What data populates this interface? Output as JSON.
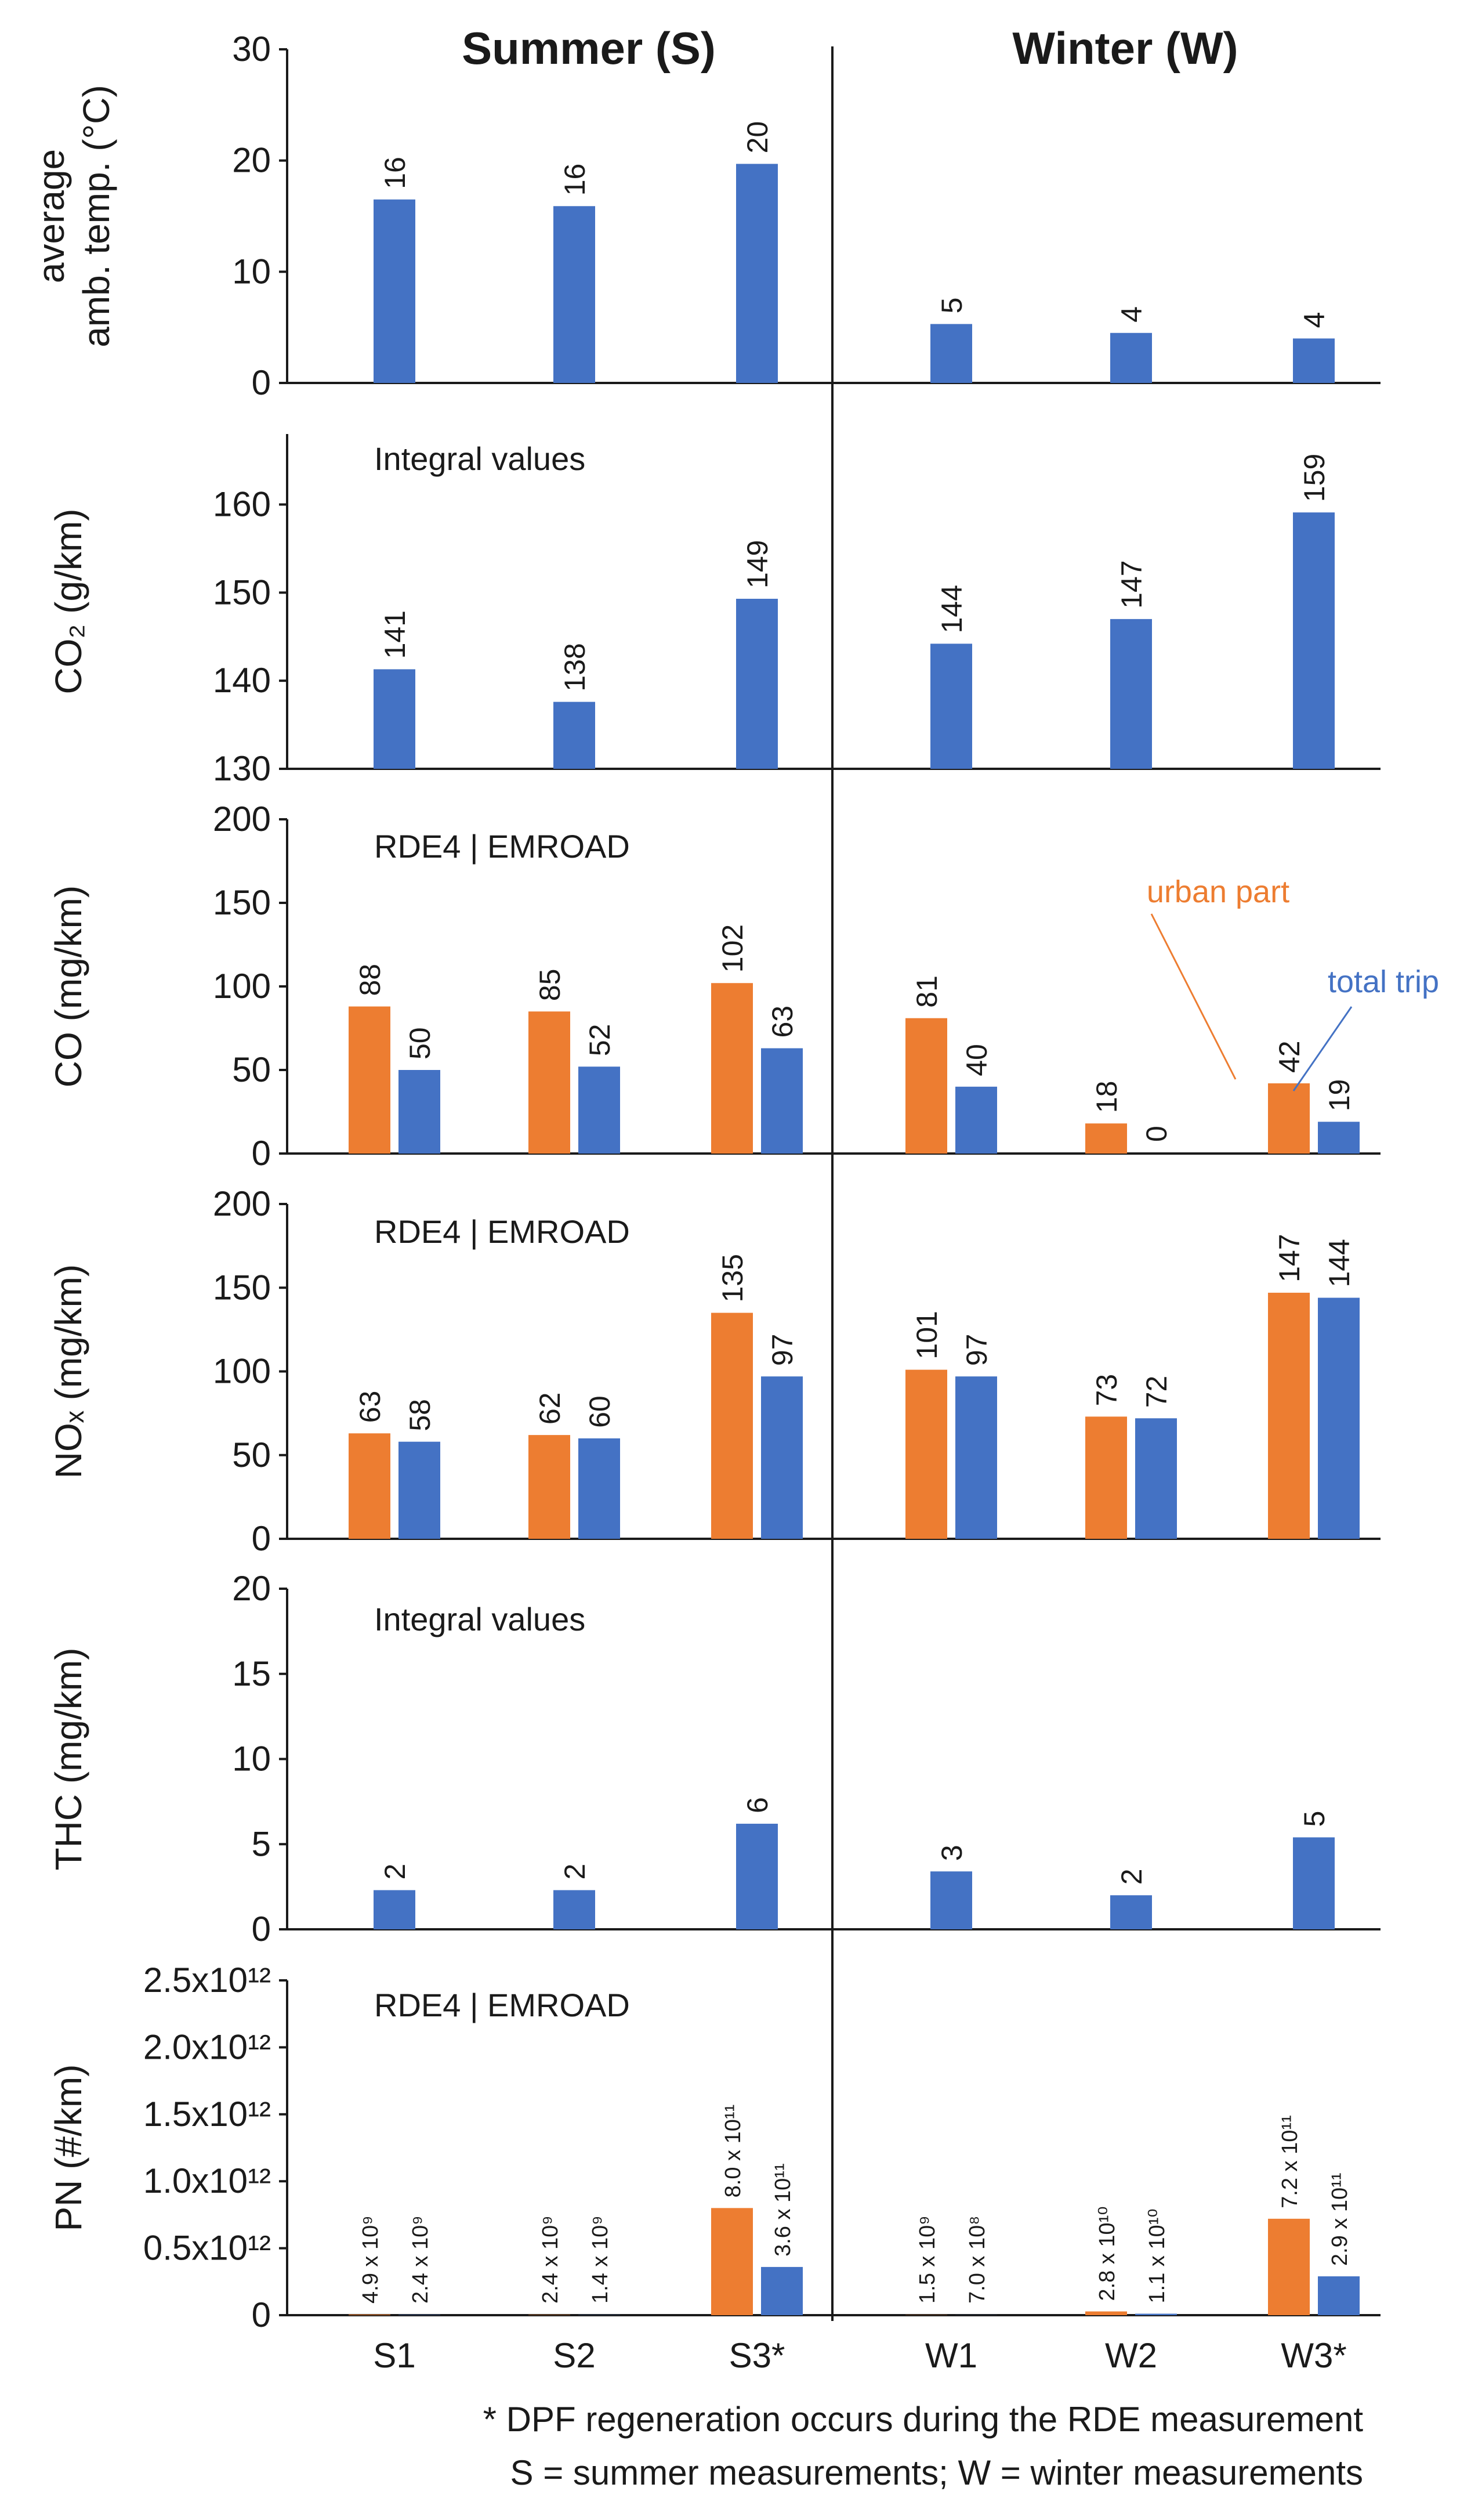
{
  "colors": {
    "urban": "#ED7D31",
    "total": "#4472C4",
    "axis": "#1a1a1a",
    "annot_urban": "#ED7D31",
    "annot_total": "#4472C4"
  },
  "headers": {
    "summer": "Summer (S)",
    "winter": "Winter (W)"
  },
  "categories": [
    "S1",
    "S2",
    "S3*",
    "W1",
    "W2",
    "W3*"
  ],
  "footnote": {
    "line1": "* DPF regeneration occurs during the RDE measurement",
    "line2": "S = summer measurements; W = winter measurements"
  },
  "annotations": {
    "urban": "urban part",
    "total": "total trip"
  },
  "chart_data": [
    {
      "type": "bar",
      "id": "temp",
      "ylabel_lines": [
        "average",
        "amb. temp. (°C)"
      ],
      "note": "",
      "ylim": [
        0,
        30
      ],
      "yticks": [
        0,
        10,
        20,
        30
      ],
      "ytick_labels": [
        "0",
        "10",
        "20",
        "30"
      ],
      "series": [
        {
          "name": "total trip",
          "values": [
            16.5,
            15.9,
            19.7,
            5.3,
            4.5,
            4.0
          ],
          "labels": [
            "16",
            "16",
            "20",
            "5",
            "4",
            "4"
          ]
        }
      ]
    },
    {
      "type": "bar",
      "id": "co2",
      "ylabel_lines": [
        "CO₂ (g/km)"
      ],
      "note": "Integral values",
      "ylim": [
        130,
        168
      ],
      "yticks": [
        130,
        140,
        150,
        160
      ],
      "ytick_labels": [
        "130",
        "140",
        "150",
        "160"
      ],
      "series": [
        {
          "name": "total trip",
          "values": [
            141.3,
            137.6,
            149.3,
            144.2,
            147.0,
            159.1
          ],
          "labels": [
            "141",
            "138",
            "149",
            "144",
            "147",
            "159"
          ]
        }
      ]
    },
    {
      "type": "bar",
      "id": "co",
      "ylabel_lines": [
        "CO (mg/km)"
      ],
      "note": "RDE4 | EMROAD",
      "ylim": [
        0,
        200
      ],
      "yticks": [
        0,
        50,
        100,
        150,
        200
      ],
      "ytick_labels": [
        "0",
        "50",
        "100",
        "150",
        "200"
      ],
      "series": [
        {
          "name": "urban part",
          "values": [
            88,
            85,
            102,
            81,
            18,
            42
          ],
          "labels": [
            "88",
            "85",
            "102",
            "81",
            "18",
            "42"
          ]
        },
        {
          "name": "total trip",
          "values": [
            50,
            52,
            63,
            40,
            0,
            19
          ],
          "labels": [
            "50",
            "52",
            "63",
            "40",
            "0",
            "19"
          ]
        }
      ]
    },
    {
      "type": "bar",
      "id": "nox",
      "ylabel_lines": [
        "NOₓ (mg/km)"
      ],
      "note": "RDE4 | EMROAD",
      "ylim": [
        0,
        200
      ],
      "yticks": [
        0,
        50,
        100,
        150,
        200
      ],
      "ytick_labels": [
        "0",
        "50",
        "100",
        "150",
        "200"
      ],
      "series": [
        {
          "name": "urban part",
          "values": [
            63,
            62,
            135,
            101,
            73,
            147
          ],
          "labels": [
            "63",
            "62",
            "135",
            "101",
            "73",
            "147"
          ]
        },
        {
          "name": "total trip",
          "values": [
            58,
            60,
            97,
            97,
            72,
            144
          ],
          "labels": [
            "58",
            "60",
            "97",
            "97",
            "72",
            "144"
          ]
        }
      ]
    },
    {
      "type": "bar",
      "id": "thc",
      "ylabel_lines": [
        "THC (mg/km)"
      ],
      "note": "Integral values",
      "ylim": [
        0,
        20
      ],
      "yticks": [
        0,
        5,
        10,
        15,
        20
      ],
      "ytick_labels": [
        "0",
        "5",
        "10",
        "15",
        "20"
      ],
      "series": [
        {
          "name": "total trip",
          "values": [
            2.3,
            2.3,
            6.2,
            3.4,
            2.0,
            5.4
          ],
          "labels": [
            "2",
            "2",
            "6",
            "3",
            "2",
            "5"
          ]
        }
      ]
    },
    {
      "type": "bar",
      "id": "pn",
      "ylabel_lines": [
        "PN (#/km)"
      ],
      "note": "RDE4 | EMROAD",
      "ylim": [
        0,
        2500000000000.0
      ],
      "yticks": [
        0,
        500000000000.0,
        1000000000000.0,
        1500000000000.0,
        2000000000000.0,
        2500000000000.0
      ],
      "ytick_labels": [
        "0",
        "0.5x10¹²",
        "1.0x10¹²",
        "1.5x10¹²",
        "2.0x10¹²",
        "2.5x10¹²"
      ],
      "series": [
        {
          "name": "urban part",
          "values": [
            4900000000.0,
            2400000000.0,
            800000000000.0,
            1500000000.0,
            28000000000.0,
            720000000000.0
          ],
          "labels": [
            "4.9 x 10⁹",
            "2.4 x 10⁹",
            "8.0 x 10¹¹",
            "1.5 x 10⁹",
            "2.8 x 10¹⁰",
            "7.2 x 10¹¹"
          ]
        },
        {
          "name": "total trip",
          "values": [
            2400000000.0,
            1400000000.0,
            360000000000.0,
            700000000.0,
            11000000000.0,
            290000000000.0
          ],
          "labels": [
            "2.4 x 10⁹",
            "1.4 x 10⁹",
            "3.6 x 10¹¹",
            "7.0 x 10⁸",
            "1.1 x 10¹⁰",
            "2.9 x 10¹¹"
          ]
        }
      ]
    }
  ]
}
